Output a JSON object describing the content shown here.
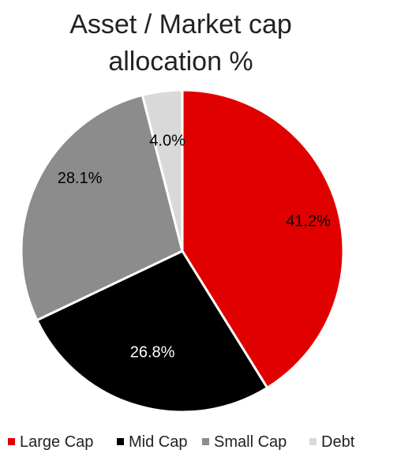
{
  "chart_data": {
    "type": "pie",
    "title_lines": [
      "Asset / Market cap",
      "allocation %"
    ],
    "slices": [
      {
        "name": "Large Cap",
        "value": 41.2,
        "label": "41.2%",
        "color": "#E00000",
        "label_color": "#000000"
      },
      {
        "name": "Mid Cap",
        "value": 26.8,
        "label": "26.8%",
        "color": "#000000",
        "label_color": "#FFFFFF"
      },
      {
        "name": "Small Cap",
        "value": 28.1,
        "label": "28.1%",
        "color": "#8C8C8C",
        "label_color": "#000000"
      },
      {
        "name": "Debt",
        "value": 4.0,
        "label": "4.0%",
        "color": "#D9D9D9",
        "label_color": "#000000"
      }
    ],
    "legend_position": "bottom",
    "start_angle_deg": 0,
    "direction": "clockwise"
  }
}
